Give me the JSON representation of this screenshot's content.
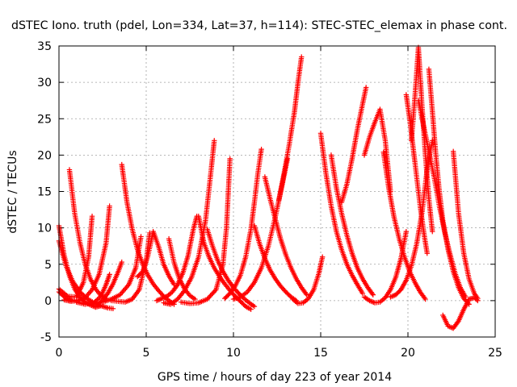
{
  "chart_data": {
    "type": "scatter",
    "title": "dSTEC Iono. truth (pdel, Lon=334, Lat=37, h=114): STEC-STEC_elemax in phase cont.",
    "xlabel": "GPS time / hours of day 223 of year 2014",
    "ylabel": "dSTEC  / TECUs",
    "xlim": [
      0,
      25
    ],
    "ylim": [
      -5,
      35
    ],
    "xticks": [
      0,
      5,
      10,
      15,
      20,
      25
    ],
    "yticks": [
      -5,
      0,
      5,
      10,
      15,
      20,
      25,
      30,
      35
    ],
    "grid": true,
    "marker": "plus",
    "marker_color": "#ff0000",
    "series": [
      {
        "x": [
          0.0,
          0.3,
          0.6,
          0.9,
          1.2,
          1.5,
          1.8,
          2.1,
          2.4
        ],
        "y": [
          10.3,
          6.2,
          3.4,
          1.6,
          0.5,
          -0.2,
          -0.6,
          -0.9,
          -0.7
        ]
      },
      {
        "x": [
          0.0,
          0.4,
          0.8,
          1.2,
          1.6,
          2.0,
          2.4,
          2.8,
          3.1
        ],
        "y": [
          8.2,
          4.8,
          2.6,
          1.2,
          0.3,
          -0.3,
          -0.7,
          -1.0,
          -1.1
        ]
      },
      {
        "x": [
          0.0,
          0.5,
          1.0,
          1.4,
          1.7,
          1.9
        ],
        "y": [
          1.6,
          0.6,
          0.5,
          2.5,
          6.0,
          11.6
        ]
      },
      {
        "x": [
          0.0,
          0.4,
          0.8,
          1.1
        ],
        "y": [
          1.2,
          0.3,
          0.0,
          0.1
        ]
      },
      {
        "x": [
          0.6,
          0.9,
          1.2,
          1.5,
          1.8,
          2.1,
          2.4,
          2.7
        ],
        "y": [
          18.0,
          12.0,
          8.0,
          5.0,
          3.0,
          1.6,
          0.7,
          0.3
        ]
      },
      {
        "x": [
          0.3,
          0.7,
          1.1,
          1.5,
          1.9,
          2.3,
          2.7,
          2.9
        ],
        "y": [
          0.1,
          -0.1,
          0.0,
          0.4,
          1.5,
          3.6,
          7.9,
          13.0
        ]
      },
      {
        "x": [
          1.0,
          1.5,
          2.0,
          2.4,
          2.7,
          2.9
        ],
        "y": [
          -0.2,
          -0.5,
          -0.3,
          0.6,
          2.2,
          3.6
        ]
      },
      {
        "x": [
          2.2,
          2.5,
          2.8,
          3.1,
          3.4,
          3.6
        ],
        "y": [
          -0.6,
          0.1,
          1.0,
          2.3,
          4.0,
          5.3
        ]
      },
      {
        "x": [
          3.6,
          3.9,
          4.2,
          4.5,
          4.8,
          5.1,
          5.4,
          5.7,
          6.0,
          6.3,
          6.6
        ],
        "y": [
          18.7,
          13.5,
          9.8,
          7.0,
          5.0,
          3.5,
          2.3,
          1.4,
          0.6,
          0.0,
          -0.5
        ]
      },
      {
        "x": [
          3.0,
          3.4,
          3.8,
          4.2,
          4.6,
          5.0,
          5.2
        ],
        "y": [
          0.0,
          -0.1,
          -0.2,
          0.2,
          1.5,
          5.5,
          9.3
        ]
      },
      {
        "x": [
          2.5,
          3.0,
          3.5,
          4.0,
          4.4,
          4.7
        ],
        "y": [
          -0.2,
          0.2,
          0.8,
          2.2,
          4.5,
          8.8
        ]
      },
      {
        "x": [
          4.5,
          4.8,
          5.1,
          5.4,
          5.7,
          6.0,
          6.3,
          6.6
        ],
        "y": [
          3.3,
          4.0,
          6.2,
          9.5,
          7.5,
          5.0,
          3.4,
          2.2
        ]
      },
      {
        "x": [
          5.6,
          5.9,
          6.2,
          6.5,
          6.8,
          7.1,
          7.4,
          7.7,
          7.9
        ],
        "y": [
          0.0,
          0.3,
          0.6,
          1.2,
          2.2,
          3.8,
          6.2,
          9.8,
          11.6
        ]
      },
      {
        "x": [
          6.3,
          6.6,
          6.9,
          7.2,
          7.5,
          7.8
        ],
        "y": [
          8.5,
          5.2,
          3.0,
          1.6,
          0.7,
          0.2
        ]
      },
      {
        "x": [
          6.0,
          6.4,
          6.8,
          7.2,
          7.6,
          8.0,
          8.4,
          8.7,
          8.9
        ],
        "y": [
          -0.3,
          -0.5,
          0.2,
          1.4,
          3.2,
          6.0,
          11.0,
          17.5,
          22.0
        ]
      },
      {
        "x": [
          7.0,
          7.5,
          8.0,
          8.5,
          9.0,
          9.4,
          9.6,
          9.8
        ],
        "y": [
          -0.2,
          -0.4,
          -0.3,
          0.2,
          1.5,
          5.0,
          10.0,
          19.5
        ]
      },
      {
        "x": [
          8.0,
          8.3,
          8.6,
          8.9,
          9.2,
          9.5,
          9.8,
          10.1,
          10.4,
          10.7,
          11.0
        ],
        "y": [
          11.6,
          8.0,
          6.0,
          4.5,
          3.3,
          2.3,
          1.4,
          0.6,
          -0.1,
          -0.8,
          -1.2
        ]
      },
      {
        "x": [
          8.5,
          8.8,
          9.1,
          9.4,
          9.7,
          10.0,
          10.3,
          10.6,
          10.9,
          11.2
        ],
        "y": [
          9.8,
          7.5,
          5.5,
          4.0,
          2.8,
          1.8,
          1.0,
          0.3,
          -0.3,
          -0.8
        ]
      },
      {
        "x": [
          9.5,
          9.8,
          10.1,
          10.4,
          10.7,
          11.0,
          11.2,
          11.4,
          11.6
        ],
        "y": [
          0.3,
          1.0,
          2.0,
          3.5,
          6.0,
          9.8,
          13.5,
          17.5,
          20.8
        ]
      },
      {
        "x": [
          10.0,
          10.4,
          10.8,
          11.2,
          11.6,
          12.0,
          12.4,
          12.8,
          13.1
        ],
        "y": [
          0.2,
          0.5,
          1.2,
          2.5,
          4.5,
          7.5,
          11.5,
          16.0,
          19.5
        ]
      },
      {
        "x": [
          11.2,
          11.5,
          11.8,
          12.1,
          12.4,
          12.7,
          13.0,
          13.3,
          13.6
        ],
        "y": [
          10.3,
          7.8,
          5.8,
          4.2,
          3.0,
          2.0,
          1.2,
          0.5,
          0.0
        ]
      },
      {
        "x": [
          11.8,
          12.1,
          12.4,
          12.7,
          13.0,
          13.3,
          13.6,
          13.9,
          14.2
        ],
        "y": [
          17.0,
          14.0,
          11.2,
          8.5,
          6.3,
          4.5,
          3.0,
          1.8,
          0.8
        ]
      },
      {
        "x": [
          12.6,
          12.9,
          13.2,
          13.5,
          13.7,
          13.9
        ],
        "y": [
          13.8,
          17.5,
          21.5,
          26.0,
          30.0,
          33.5
        ]
      },
      {
        "x": [
          13.4,
          13.7,
          14.0,
          14.3,
          14.6,
          14.9,
          15.1
        ],
        "y": [
          0.2,
          -0.4,
          -0.3,
          0.3,
          1.5,
          3.8,
          6.0
        ]
      },
      {
        "x": [
          15.0,
          15.3,
          15.6,
          15.9,
          16.2,
          16.5,
          16.8,
          17.1,
          17.4
        ],
        "y": [
          23.0,
          17.5,
          13.0,
          9.5,
          7.0,
          5.0,
          3.5,
          2.2,
          1.0
        ]
      },
      {
        "x": [
          15.6,
          15.9,
          16.2,
          16.5,
          16.8,
          17.1,
          17.4,
          17.7,
          18.0
        ],
        "y": [
          20.0,
          15.5,
          12.0,
          9.0,
          6.5,
          4.5,
          3.0,
          1.8,
          0.8
        ]
      },
      {
        "x": [
          16.2,
          16.5,
          16.8,
          17.1,
          17.4,
          17.6
        ],
        "y": [
          13.5,
          16.0,
          19.5,
          23.5,
          27.0,
          29.3
        ]
      },
      {
        "x": [
          17.5,
          17.8,
          18.1,
          18.4,
          18.7,
          19.0
        ],
        "y": [
          20.0,
          22.5,
          24.5,
          26.3,
          22.0,
          15.0
        ]
      },
      {
        "x": [
          17.5,
          17.8,
          18.1,
          18.4,
          18.7,
          19.0,
          19.3,
          19.6,
          19.9
        ],
        "y": [
          0.5,
          0.0,
          -0.3,
          -0.2,
          0.4,
          1.5,
          3.2,
          5.8,
          9.5
        ]
      },
      {
        "x": [
          18.6,
          18.9,
          19.2,
          19.5,
          19.8,
          20.1,
          20.4,
          20.7,
          21.0
        ],
        "y": [
          20.4,
          15.5,
          11.5,
          8.5,
          6.0,
          4.0,
          2.5,
          1.2,
          0.2
        ]
      },
      {
        "x": [
          19.9,
          20.1,
          20.3,
          20.5,
          20.7,
          20.9,
          21.1
        ],
        "y": [
          28.3,
          25.0,
          21.0,
          17.0,
          13.0,
          9.5,
          6.5
        ]
      },
      {
        "x": [
          20.2,
          20.4,
          20.6,
          20.8,
          21.0,
          21.2,
          21.4
        ],
        "y": [
          22.0,
          28.0,
          34.8,
          27.0,
          20.0,
          14.0,
          9.5
        ]
      },
      {
        "x": [
          20.6,
          20.9,
          21.2,
          21.5,
          21.8,
          22.1,
          22.4,
          22.7,
          23.0,
          23.3
        ],
        "y": [
          27.5,
          24.0,
          20.5,
          17.0,
          13.0,
          9.5,
          6.5,
          3.8,
          1.8,
          0.5
        ]
      },
      {
        "x": [
          21.2,
          21.4,
          21.6,
          21.8,
          22.0,
          22.3,
          22.6,
          22.9,
          23.2,
          23.5
        ],
        "y": [
          31.8,
          26.0,
          20.0,
          15.0,
          11.0,
          7.0,
          4.0,
          1.8,
          0.3,
          -0.5
        ]
      },
      {
        "x": [
          22.0,
          22.3,
          22.6,
          22.9,
          23.2,
          23.5,
          23.8,
          24.0
        ],
        "y": [
          -2.0,
          -3.5,
          -3.8,
          -2.8,
          -1.2,
          0.2,
          0.4,
          0.0
        ]
      },
      {
        "x": [
          22.6,
          22.9,
          23.2,
          23.5,
          23.8,
          24.0
        ],
        "y": [
          20.5,
          12.0,
          6.5,
          3.0,
          1.0,
          0.3
        ]
      },
      {
        "x": [
          19.0,
          19.3,
          19.6,
          19.9,
          20.2,
          20.5,
          20.8,
          21.1,
          21.4
        ],
        "y": [
          0.5,
          0.8,
          1.5,
          2.8,
          4.8,
          7.8,
          12.0,
          18.0,
          22.0
        ]
      }
    ]
  }
}
